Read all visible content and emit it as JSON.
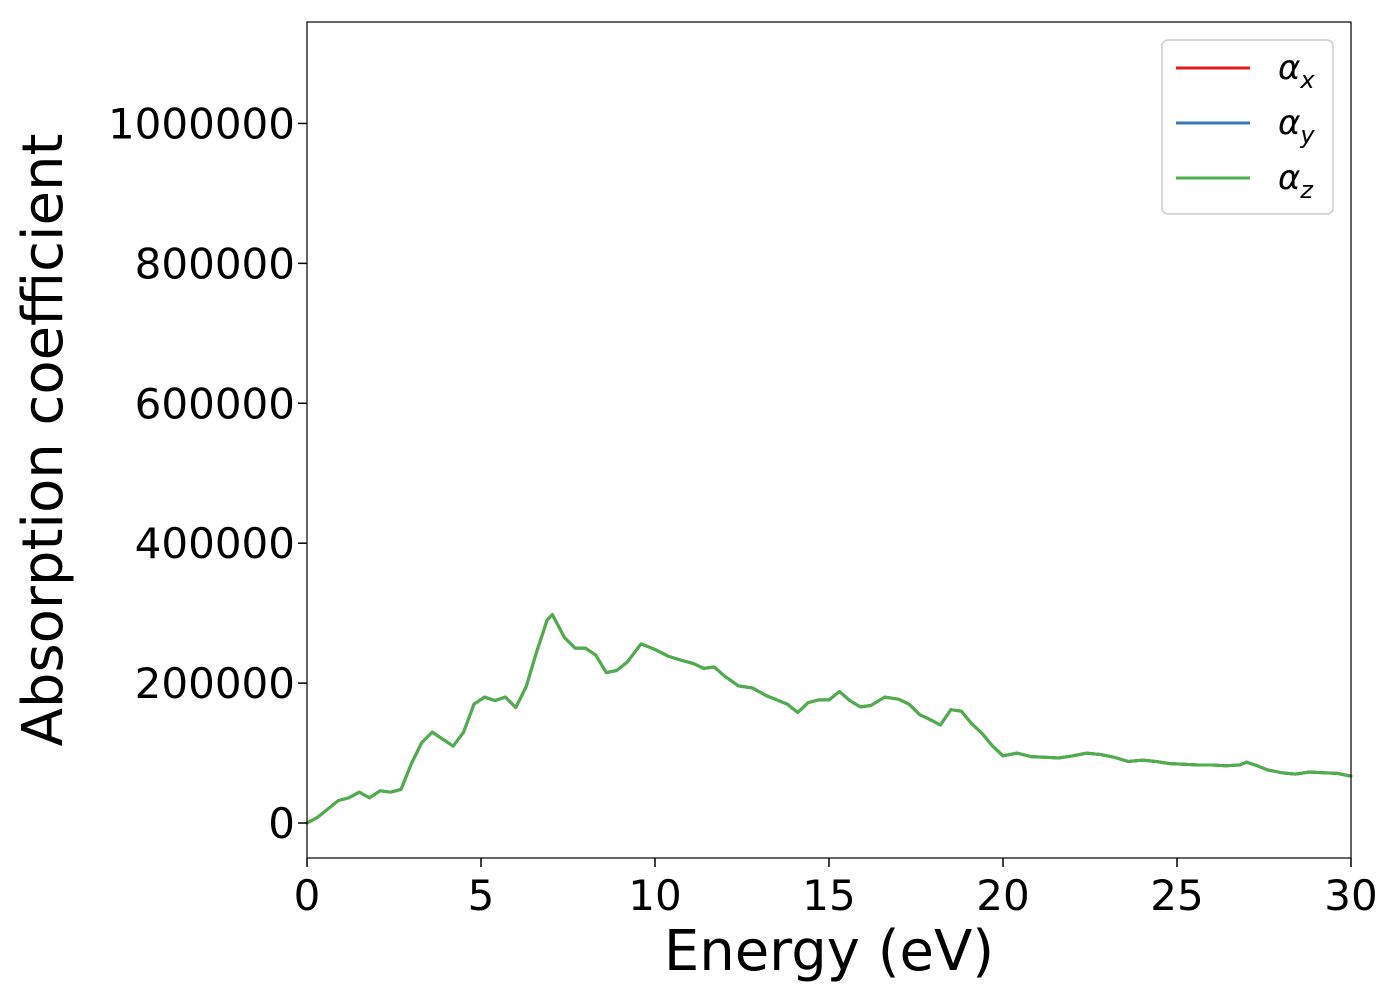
{
  "chart_data": {
    "type": "line",
    "xlabel": "Energy (eV)",
    "ylabel": "Absorption coefficient",
    "xlim": [
      0,
      30
    ],
    "ylim": [
      -50000,
      1145000
    ],
    "x_ticks": [
      0,
      5,
      10,
      15,
      20,
      25,
      30
    ],
    "y_ticks": [
      0,
      200000,
      400000,
      600000,
      800000,
      1000000
    ],
    "x_tick_labels": [
      "0",
      "5",
      "10",
      "15",
      "20",
      "25",
      "30"
    ],
    "y_tick_labels": [
      "0",
      "200000",
      "400000",
      "600000",
      "800000",
      "1000000"
    ],
    "grid": false,
    "legend_position": "top-right",
    "x": [
      0,
      0.3,
      0.6,
      0.9,
      1.2,
      1.5,
      1.8,
      2.1,
      2.4,
      2.7,
      3.0,
      3.3,
      3.6,
      3.9,
      4.2,
      4.5,
      4.8,
      5.1,
      5.4,
      5.7,
      6.0,
      6.3,
      6.6,
      6.9,
      7.05,
      7.4,
      7.7,
      8.0,
      8.3,
      8.6,
      8.9,
      9.2,
      9.6,
      10.0,
      10.4,
      10.8,
      11.1,
      11.4,
      11.7,
      12.0,
      12.4,
      12.8,
      13.2,
      13.5,
      13.8,
      14.1,
      14.4,
      14.7,
      15.0,
      15.3,
      15.6,
      15.9,
      16.2,
      16.6,
      17.0,
      17.3,
      17.6,
      17.9,
      18.2,
      18.5,
      18.8,
      19.1,
      19.4,
      19.7,
      20.0,
      20.4,
      20.8,
      21.2,
      21.6,
      22.0,
      22.4,
      22.8,
      23.2,
      23.6,
      24.0,
      24.4,
      24.8,
      25.2,
      25.6,
      26.0,
      26.4,
      26.8,
      27.0,
      27.3,
      27.6,
      28.0,
      28.4,
      28.8,
      29.2,
      29.6,
      30.0
    ],
    "series": [
      {
        "name": "α_x",
        "color": "#e41a1c",
        "values": [
          0,
          8000,
          20000,
          32000,
          36000,
          44000,
          36000,
          46000,
          44000,
          48000,
          85000,
          115000,
          130000,
          120000,
          110000,
          130000,
          170000,
          180000,
          175000,
          180000,
          165000,
          195000,
          245000,
          290000,
          298000,
          265000,
          250000,
          250000,
          240000,
          215000,
          218000,
          230000,
          256000,
          248000,
          238000,
          232000,
          228000,
          221000,
          223000,
          210000,
          196000,
          193000,
          182000,
          176000,
          170000,
          158000,
          172000,
          176000,
          176000,
          188000,
          175000,
          166000,
          168000,
          180000,
          177000,
          170000,
          155000,
          148000,
          140000,
          162000,
          160000,
          142000,
          128000,
          110000,
          96000,
          100000,
          95000,
          94000,
          93000,
          96000,
          100000,
          98000,
          94000,
          88000,
          90000,
          88000,
          85000,
          84000,
          83000,
          83000,
          82000,
          83000,
          87000,
          82000,
          76000,
          72000,
          70000,
          73000,
          72000,
          71000,
          67000
        ]
      },
      {
        "name": "α_y",
        "color": "#377eb8",
        "values": [
          0,
          8000,
          20000,
          32000,
          36000,
          44000,
          36000,
          46000,
          44000,
          48000,
          85000,
          115000,
          130000,
          120000,
          110000,
          130000,
          170000,
          180000,
          175000,
          180000,
          165000,
          195000,
          245000,
          290000,
          298000,
          265000,
          250000,
          250000,
          240000,
          215000,
          218000,
          230000,
          256000,
          248000,
          238000,
          232000,
          228000,
          221000,
          223000,
          210000,
          196000,
          193000,
          182000,
          176000,
          170000,
          158000,
          172000,
          176000,
          176000,
          188000,
          175000,
          166000,
          168000,
          180000,
          177000,
          170000,
          155000,
          148000,
          140000,
          162000,
          160000,
          142000,
          128000,
          110000,
          96000,
          100000,
          95000,
          94000,
          93000,
          96000,
          100000,
          98000,
          94000,
          88000,
          90000,
          88000,
          85000,
          84000,
          83000,
          83000,
          82000,
          83000,
          87000,
          82000,
          76000,
          72000,
          70000,
          73000,
          72000,
          71000,
          67000
        ]
      },
      {
        "name": "α_z",
        "color": "#4daf4a",
        "values": [
          0,
          8000,
          20000,
          32000,
          36000,
          44000,
          36000,
          46000,
          44000,
          48000,
          85000,
          115000,
          130000,
          120000,
          110000,
          130000,
          170000,
          180000,
          175000,
          180000,
          165000,
          195000,
          245000,
          290000,
          298000,
          265000,
          250000,
          250000,
          240000,
          215000,
          218000,
          230000,
          256000,
          248000,
          238000,
          232000,
          228000,
          221000,
          223000,
          210000,
          196000,
          193000,
          182000,
          176000,
          170000,
          158000,
          172000,
          176000,
          176000,
          188000,
          175000,
          166000,
          168000,
          180000,
          177000,
          170000,
          155000,
          148000,
          140000,
          162000,
          160000,
          142000,
          128000,
          110000,
          96000,
          100000,
          95000,
          94000,
          93000,
          96000,
          100000,
          98000,
          94000,
          88000,
          90000,
          88000,
          85000,
          84000,
          83000,
          83000,
          82000,
          83000,
          87000,
          82000,
          76000,
          72000,
          70000,
          73000,
          72000,
          71000,
          67000
        ]
      }
    ],
    "legend": [
      {
        "symbol": "α",
        "sub": "x",
        "color": "#e41a1c"
      },
      {
        "symbol": "α",
        "sub": "y",
        "color": "#377eb8"
      },
      {
        "symbol": "α",
        "sub": "z",
        "color": "#4daf4a"
      }
    ]
  }
}
